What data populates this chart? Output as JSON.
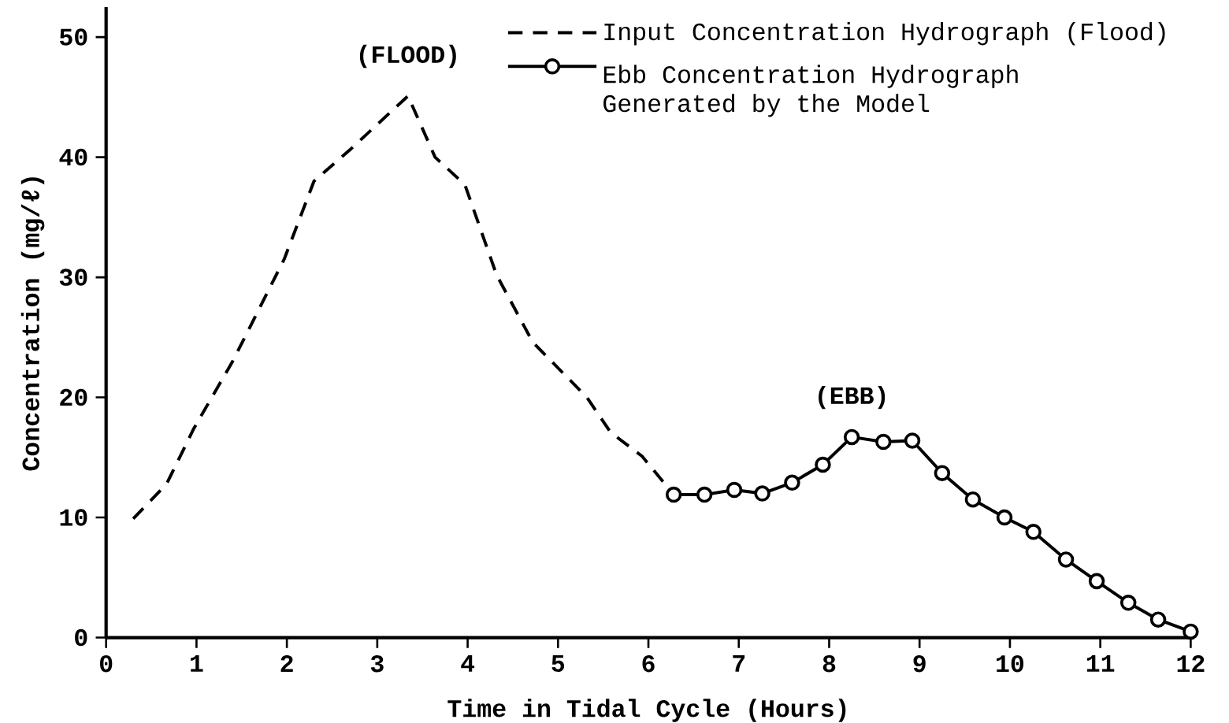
{
  "chart_data": {
    "type": "line",
    "xlabel": "Time in Tidal Cycle (Hours)",
    "ylabel": "Concentration (mg/ℓ)",
    "xlim": [
      0,
      12
    ],
    "ylim": [
      0,
      52.5
    ],
    "xticks": [
      0,
      1,
      2,
      3,
      4,
      5,
      6,
      7,
      8,
      9,
      10,
      11,
      12
    ],
    "yticks": [
      0,
      10,
      20,
      30,
      40,
      50
    ],
    "legend": "top right",
    "grid": false,
    "series": [
      {
        "name": "Input Concentration Hydrograph (Flood)",
        "color": "#000000",
        "line_style": "dashed",
        "marker": "none",
        "x": [
          0.3,
          0.67,
          0.97,
          1.4,
          1.97,
          2.3,
          2.71,
          3.34,
          3.64,
          3.97,
          4.32,
          4.72,
          5.32,
          5.58,
          5.93,
          6.27
        ],
        "values": [
          9.9,
          12.8,
          17.4,
          23,
          31.5,
          38,
          40.7,
          45.1,
          40,
          37.7,
          30.2,
          24.6,
          20,
          17.1,
          15.1,
          12
        ]
      },
      {
        "name": "Ebb Concentration Hydrograph Generated by the Model",
        "color": "#000000",
        "line_style": "solid",
        "marker": "circle",
        "x": [
          6.28,
          6.62,
          6.95,
          7.26,
          7.59,
          7.93,
          8.25,
          8.6,
          8.92,
          9.25,
          9.59,
          9.94,
          10.26,
          10.62,
          10.96,
          11.31,
          11.64,
          12
        ],
        "values": [
          11.9,
          11.9,
          12.3,
          12.0,
          12.9,
          14.4,
          16.7,
          16.3,
          16.4,
          13.7,
          11.5,
          10.0,
          8.8,
          6.5,
          4.7,
          2.9,
          1.5,
          0.5
        ]
      }
    ],
    "annotations": [
      "(FLOOD)",
      "(EBB)"
    ]
  }
}
